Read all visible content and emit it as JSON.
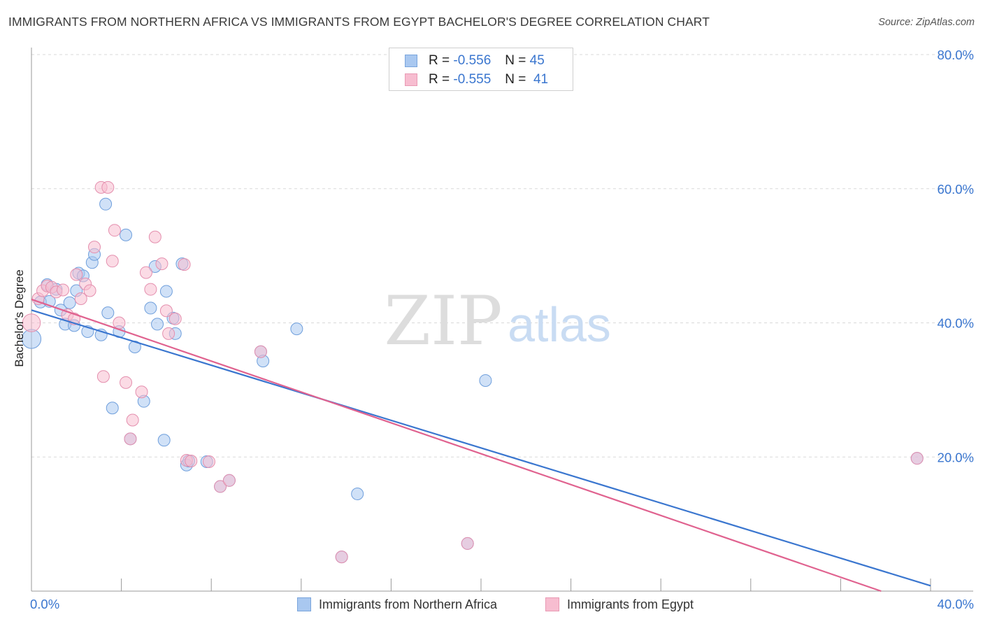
{
  "title": "IMMIGRANTS FROM NORTHERN AFRICA VS IMMIGRANTS FROM EGYPT BACHELOR'S DEGREE CORRELATION CHART",
  "source": "Source: ZipAtlas.com",
  "watermark": {
    "zip": "ZIP",
    "atlas": "atlas"
  },
  "stats": [
    {
      "r_label": "R = ",
      "r_value": "-0.556",
      "n_label": "N = ",
      "n_value": "45",
      "color": "#a9c8f0",
      "border": "#7aa5dc"
    },
    {
      "r_label": "R = ",
      "r_value": "-0.555",
      "n_label": "N = ",
      "n_value": "41",
      "color": "#f7bdd0",
      "border": "#e99ab4"
    }
  ],
  "colors": {
    "blue": "#3a76cf",
    "pink": "#e0628f",
    "blue_fill": "#a9c8f0",
    "pink_fill": "#f7bdd0",
    "grid": "#d9d9d9",
    "axis_label": "#3a76cf"
  },
  "chart_data": {
    "type": "scatter",
    "title": "IMMIGRANTS FROM NORTHERN AFRICA VS IMMIGRANTS FROM EGYPT BACHELOR'S DEGREE CORRELATION CHART",
    "xlabel": "",
    "ylabel": "Bachelor's Degree",
    "xlim": [
      0,
      40
    ],
    "ylim": [
      0,
      80
    ],
    "x_tick_labels": [
      "0.0%",
      "40.0%"
    ],
    "y_ticks": [
      20,
      40,
      60,
      80
    ],
    "y_tick_labels": [
      "20.0%",
      "40.0%",
      "60.0%",
      "80.0%"
    ],
    "grid": true,
    "legend_position": "bottom",
    "series": [
      {
        "name": "Immigrants from Northern Africa",
        "color": "#a9c8f0",
        "points": [
          [
            0.0,
            37.6,
            1.6
          ],
          [
            0.4,
            43.1,
            1.0
          ],
          [
            0.7,
            45.7,
            1.0
          ],
          [
            0.8,
            43.2,
            1.0
          ],
          [
            1.1,
            45.0,
            1.0
          ],
          [
            1.3,
            41.9,
            1.0
          ],
          [
            1.5,
            39.8,
            1.0
          ],
          [
            1.7,
            43.0,
            1.0
          ],
          [
            1.9,
            39.6,
            1.0
          ],
          [
            2.1,
            47.4,
            1.0
          ],
          [
            2.3,
            47.0,
            1.0
          ],
          [
            2.5,
            38.7,
            1.0
          ],
          [
            2.7,
            49.0,
            1.0
          ],
          [
            2.8,
            50.2,
            1.0
          ],
          [
            3.1,
            38.2,
            1.0
          ],
          [
            3.3,
            57.7,
            1.0
          ],
          [
            3.4,
            41.5,
            1.0
          ],
          [
            3.6,
            27.3,
            1.0
          ],
          [
            3.9,
            38.7,
            1.0
          ],
          [
            4.2,
            53.1,
            1.0
          ],
          [
            4.6,
            36.4,
            1.0
          ],
          [
            5.0,
            28.3,
            1.0
          ],
          [
            5.3,
            42.2,
            1.0
          ],
          [
            5.5,
            48.4,
            1.0
          ],
          [
            5.6,
            39.8,
            1.0
          ],
          [
            5.9,
            22.5,
            1.0
          ],
          [
            6.0,
            44.7,
            1.0
          ],
          [
            6.3,
            40.7,
            1.0
          ],
          [
            6.4,
            38.4,
            1.0
          ],
          [
            6.7,
            48.8,
            1.0
          ],
          [
            6.9,
            18.8,
            1.0
          ],
          [
            7.0,
            19.4,
            1.0
          ],
          [
            7.8,
            19.3,
            1.0
          ],
          [
            8.4,
            15.6,
            1.0
          ],
          [
            8.8,
            16.5,
            1.0
          ],
          [
            10.2,
            35.7,
            1.0
          ],
          [
            10.3,
            34.3,
            1.0
          ],
          [
            11.8,
            39.1,
            1.0
          ],
          [
            13.8,
            5.1,
            1.0
          ],
          [
            14.5,
            14.5,
            1.0
          ],
          [
            19.4,
            7.1,
            1.0
          ],
          [
            20.2,
            31.4,
            1.0
          ],
          [
            39.4,
            19.8,
            1.0
          ],
          [
            4.4,
            22.7,
            1.0
          ],
          [
            2.0,
            44.8,
            1.0
          ]
        ]
      },
      {
        "name": "Immigrants from Egypt",
        "color": "#f7bdd0",
        "points": [
          [
            0.0,
            40.0,
            1.5
          ],
          [
            0.3,
            43.6,
            1.0
          ],
          [
            0.5,
            44.8,
            1.0
          ],
          [
            0.7,
            45.5,
            1.0
          ],
          [
            0.9,
            45.3,
            1.0
          ],
          [
            1.1,
            44.6,
            1.0
          ],
          [
            1.4,
            44.9,
            1.0
          ],
          [
            1.6,
            41.2,
            1.0
          ],
          [
            1.9,
            40.6,
            1.0
          ],
          [
            2.0,
            47.2,
            1.0
          ],
          [
            2.2,
            43.6,
            1.0
          ],
          [
            2.4,
            45.8,
            1.0
          ],
          [
            2.6,
            44.8,
            1.0
          ],
          [
            2.8,
            51.3,
            1.0
          ],
          [
            3.1,
            60.2,
            1.0
          ],
          [
            3.2,
            32.0,
            1.0
          ],
          [
            3.4,
            60.2,
            1.0
          ],
          [
            3.6,
            49.2,
            1.0
          ],
          [
            3.7,
            53.8,
            1.0
          ],
          [
            3.9,
            40.0,
            1.0
          ],
          [
            4.2,
            31.1,
            1.0
          ],
          [
            4.5,
            25.5,
            1.0
          ],
          [
            4.9,
            29.7,
            1.0
          ],
          [
            5.1,
            47.5,
            1.0
          ],
          [
            5.3,
            45.0,
            1.0
          ],
          [
            5.5,
            52.8,
            1.0
          ],
          [
            5.8,
            48.8,
            1.0
          ],
          [
            6.0,
            41.8,
            1.0
          ],
          [
            6.1,
            38.4,
            1.0
          ],
          [
            6.4,
            40.6,
            1.0
          ],
          [
            6.8,
            48.7,
            1.0
          ],
          [
            6.9,
            19.5,
            1.0
          ],
          [
            7.1,
            19.4,
            1.0
          ],
          [
            7.9,
            19.3,
            1.0
          ],
          [
            8.4,
            15.6,
            1.0
          ],
          [
            8.8,
            16.5,
            1.0
          ],
          [
            10.2,
            35.7,
            1.0
          ],
          [
            13.8,
            5.1,
            1.0
          ],
          [
            19.4,
            7.1,
            1.0
          ],
          [
            39.4,
            19.8,
            1.0
          ],
          [
            4.4,
            22.7,
            1.0
          ]
        ]
      }
    ],
    "trendlines": [
      {
        "series": "Immigrants from Northern Africa",
        "color": "#3a76cf",
        "x": [
          0,
          40
        ],
        "y": [
          41.9,
          0.8
        ]
      },
      {
        "series": "Immigrants from Egypt",
        "color": "#e0628f",
        "x": [
          0,
          37.8
        ],
        "y": [
          43.5,
          0.0
        ]
      }
    ]
  }
}
